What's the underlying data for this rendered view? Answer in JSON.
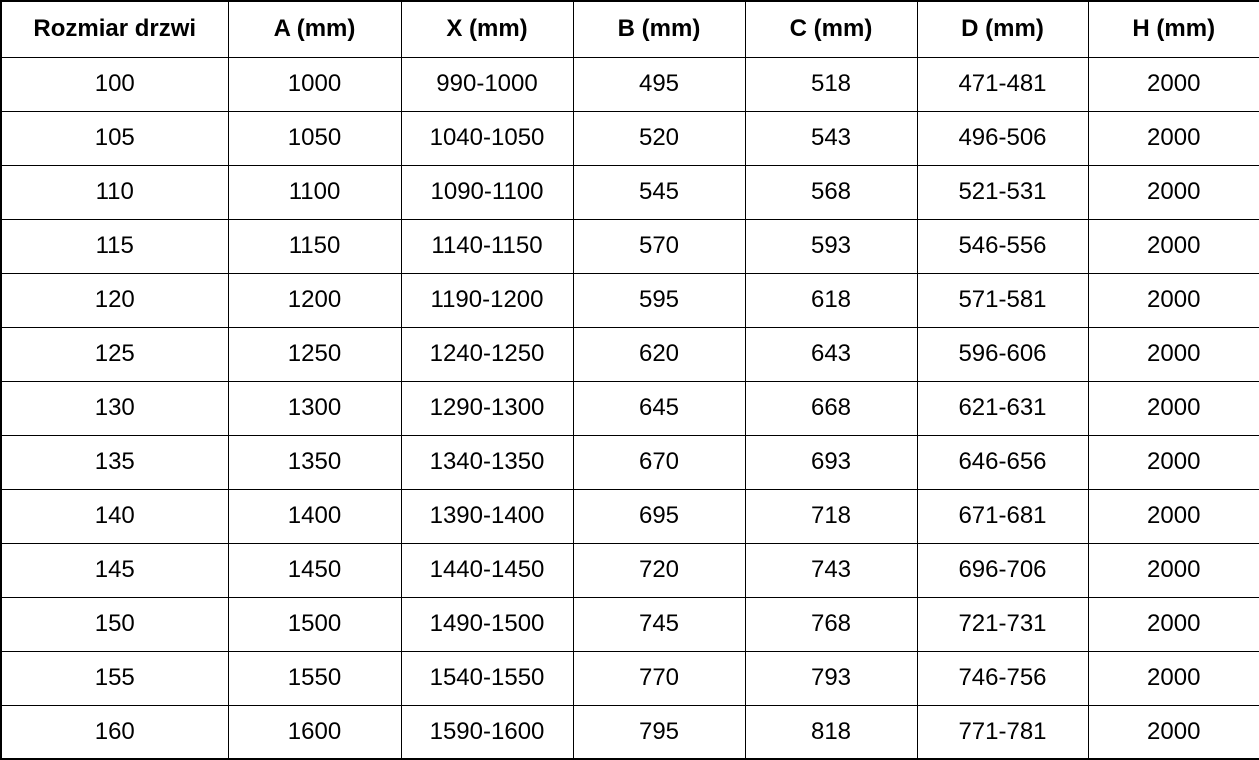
{
  "table": {
    "columns": [
      "Rozmiar drzwi",
      "A (mm)",
      "X (mm)",
      "B (mm)",
      "C (mm)",
      "D (mm)",
      "H (mm)"
    ],
    "rows": [
      [
        "100",
        "1000",
        "990-1000",
        "495",
        "518",
        "471-481",
        "2000"
      ],
      [
        "105",
        "1050",
        "1040-1050",
        "520",
        "543",
        "496-506",
        "2000"
      ],
      [
        "110",
        "1100",
        "1090-1100",
        "545",
        "568",
        "521-531",
        "2000"
      ],
      [
        "115",
        "1150",
        "1140-1150",
        "570",
        "593",
        "546-556",
        "2000"
      ],
      [
        "120",
        "1200",
        "1190-1200",
        "595",
        "618",
        "571-581",
        "2000"
      ],
      [
        "125",
        "1250",
        "1240-1250",
        "620",
        "643",
        "596-606",
        "2000"
      ],
      [
        "130",
        "1300",
        "1290-1300",
        "645",
        "668",
        "621-631",
        "2000"
      ],
      [
        "135",
        "1350",
        "1340-1350",
        "670",
        "693",
        "646-656",
        "2000"
      ],
      [
        "140",
        "1400",
        "1390-1400",
        "695",
        "718",
        "671-681",
        "2000"
      ],
      [
        "145",
        "1450",
        "1440-1450",
        "720",
        "743",
        "696-706",
        "2000"
      ],
      [
        "150",
        "1500",
        "1490-1500",
        "745",
        "768",
        "721-731",
        "2000"
      ],
      [
        "155",
        "1550",
        "1540-1550",
        "770",
        "793",
        "746-756",
        "2000"
      ],
      [
        "160",
        "1600",
        "1590-1600",
        "795",
        "818",
        "771-781",
        "2000"
      ]
    ],
    "colors": {
      "border": "#000000",
      "text": "#000000",
      "background": "#ffffff"
    }
  }
}
